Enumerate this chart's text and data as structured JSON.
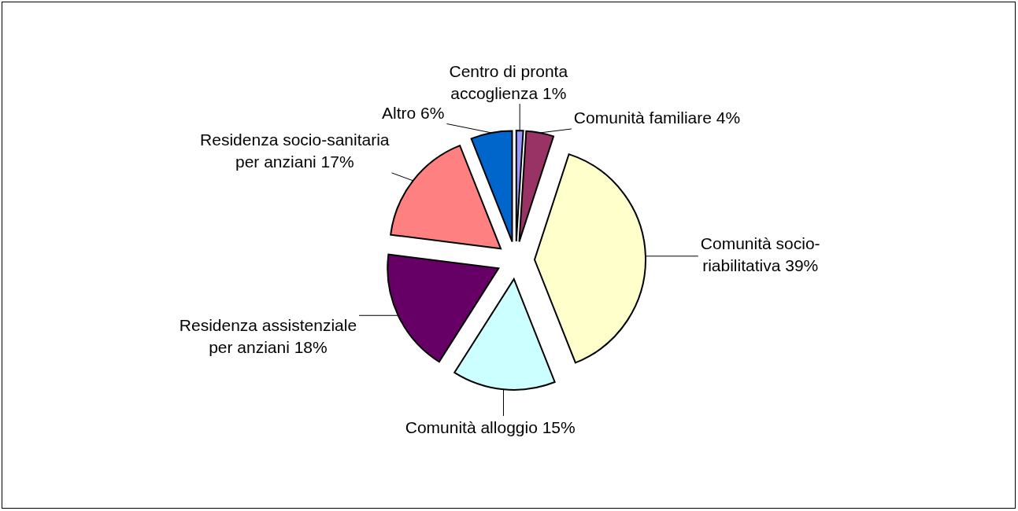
{
  "chart_data": {
    "type": "pie",
    "categories": [
      "Centro di pronta accoglienza",
      "Comunità familiare",
      "Comunità socio-riabilitativa",
      "Comunità alloggio",
      "Residenza assistenziale per anziani",
      "Residenza socio-sanitaria per anziani",
      "Altro"
    ],
    "values": [
      1,
      4,
      39,
      15,
      18,
      17,
      6
    ],
    "value_labels": [
      "1%",
      "4%",
      "39%",
      "15%",
      "18%",
      "17%",
      "6%"
    ],
    "colors": [
      "#9999ff",
      "#993366",
      "#ffffcc",
      "#ccffff",
      "#660066",
      "#ff8080",
      "#0066cc"
    ]
  }
}
